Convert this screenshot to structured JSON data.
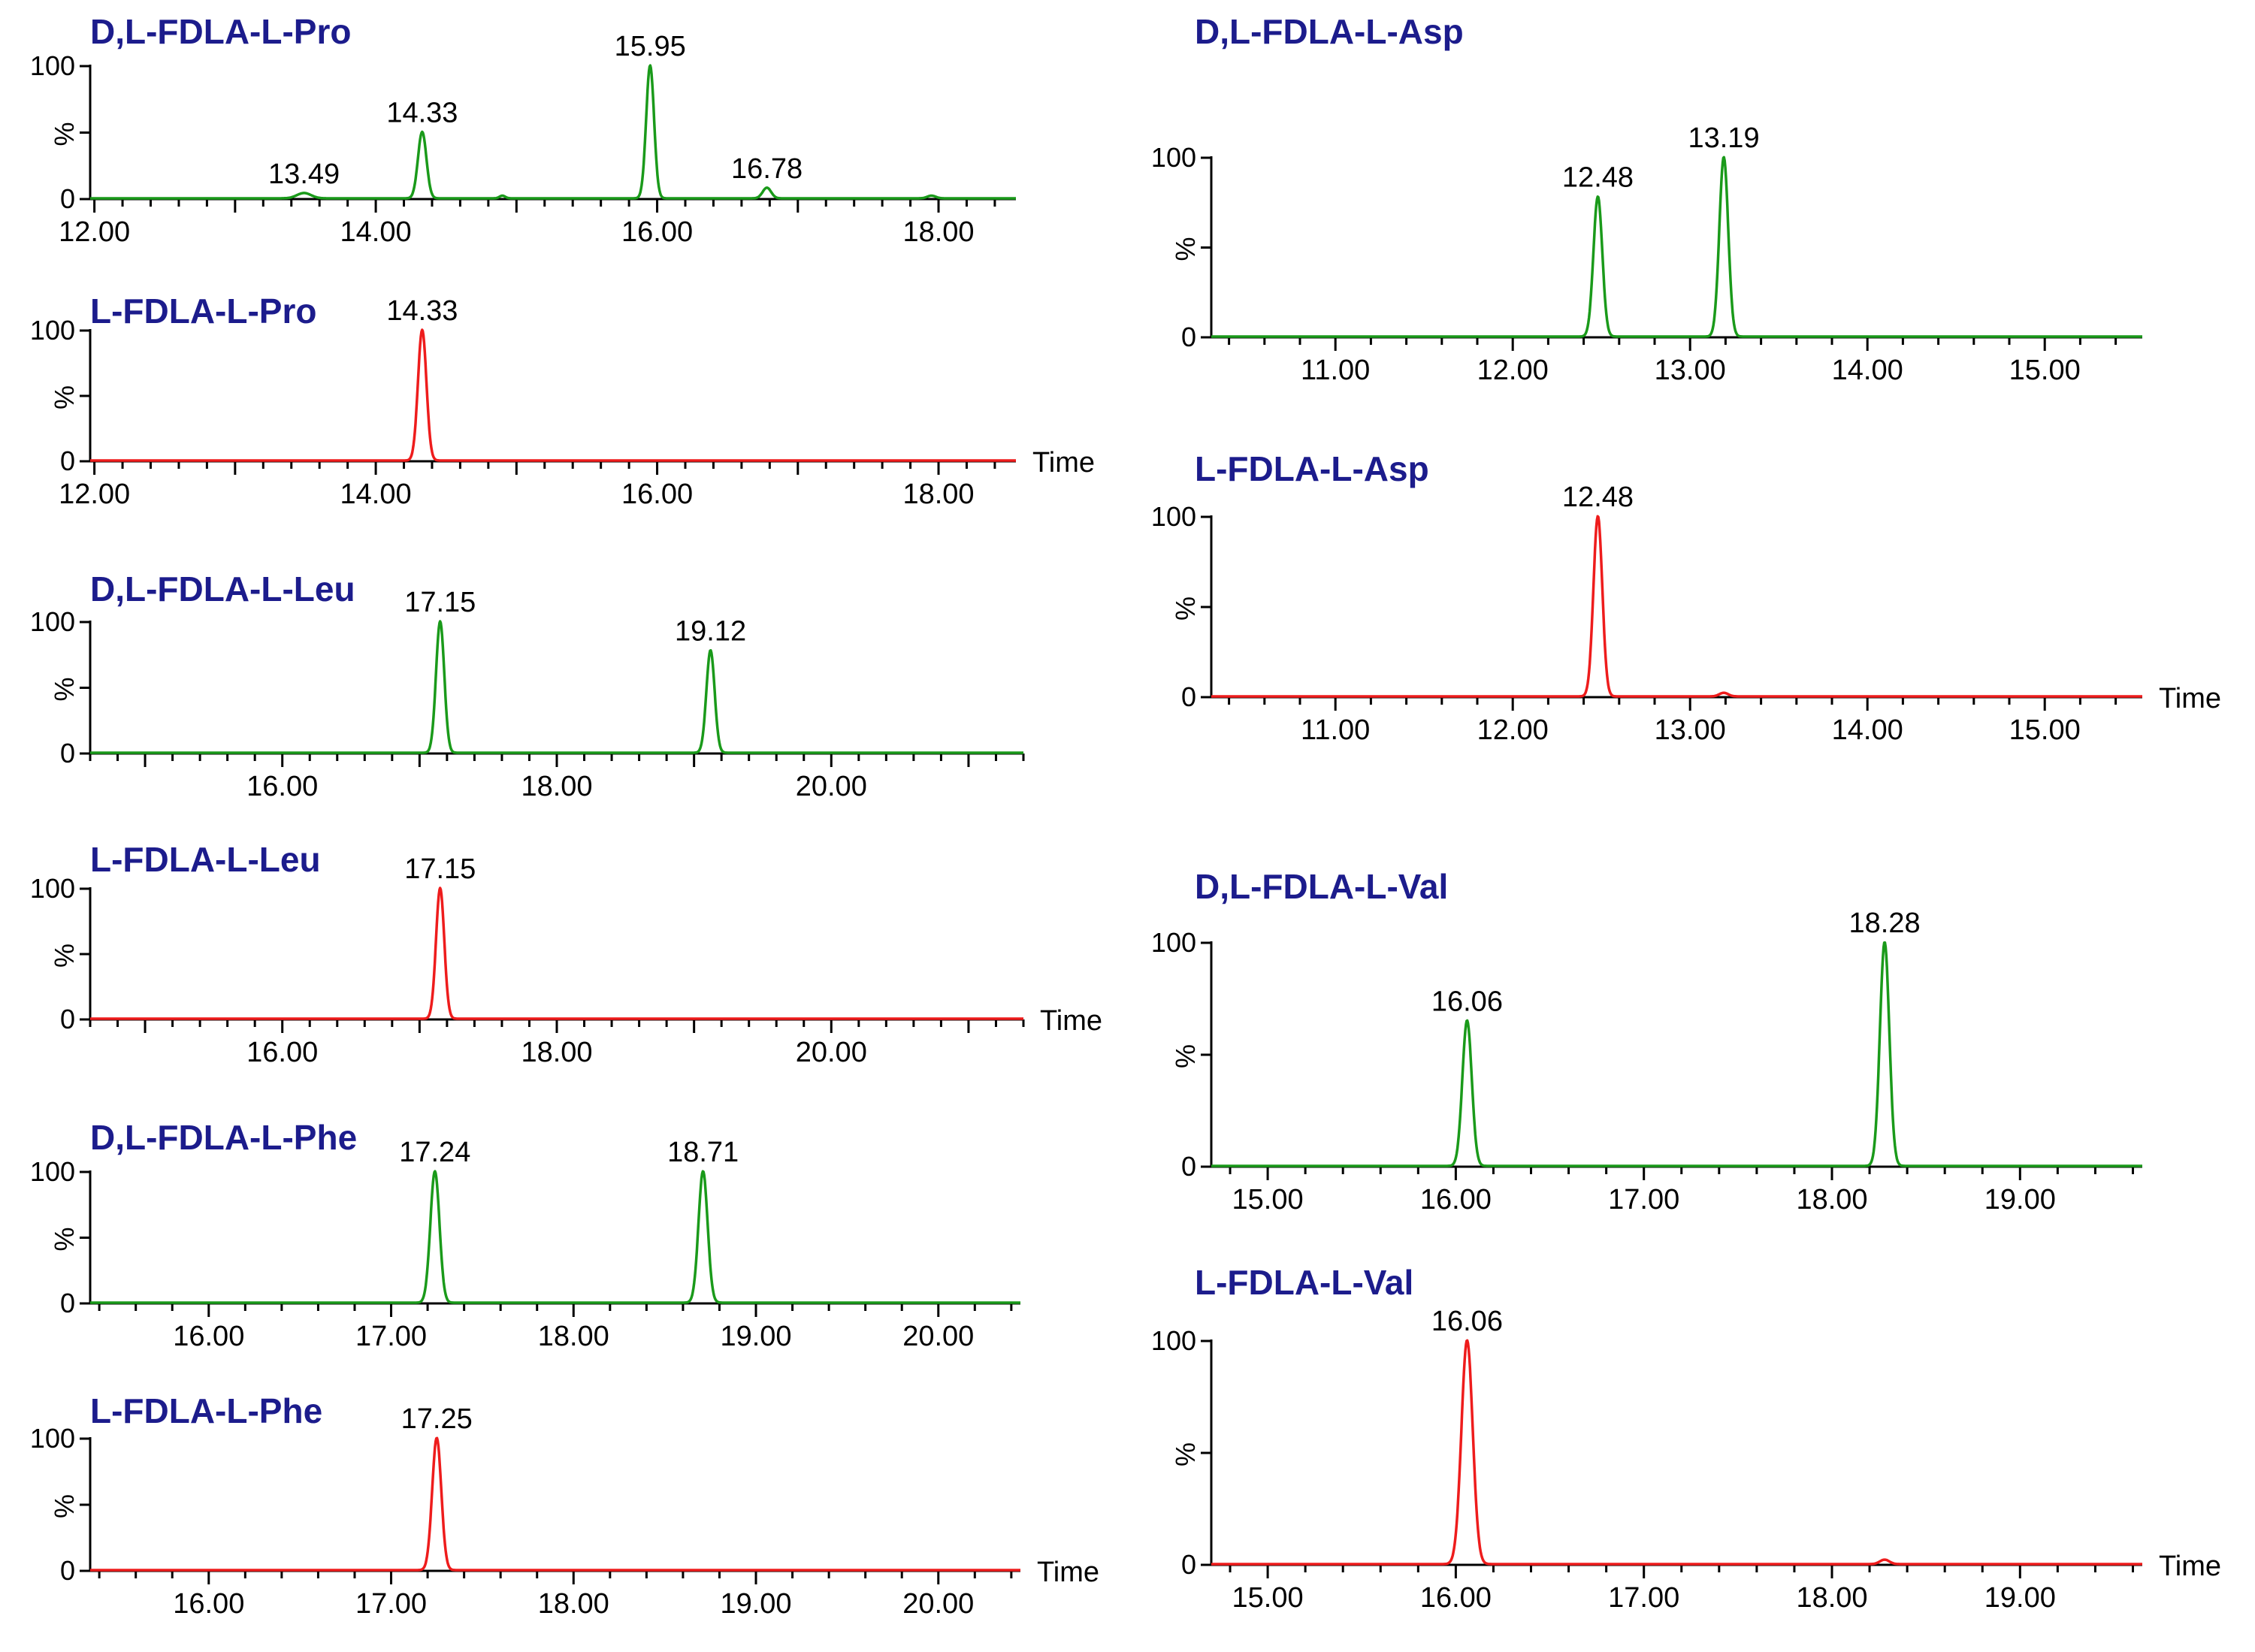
{
  "colors": {
    "green": "#1a9a1a",
    "red": "#ee1c1c",
    "title": "#1c1c8c",
    "axis": "#000000"
  },
  "y_tick_labels": [
    "100",
    "%",
    "0"
  ],
  "time_label": "Time",
  "chart_data": [
    {
      "id": "dl-pro",
      "type": "line",
      "title": "D,L-FDLA-L-Pro",
      "series_color": "green",
      "xlim": [
        11.97,
        18.55
      ],
      "ylim": [
        0,
        100
      ],
      "ylabel": "%",
      "xlabel": "",
      "xticks": [
        "12.00",
        "14.00",
        "16.00",
        "18.00"
      ],
      "peaks": [
        {
          "rt": 13.49,
          "height": 4,
          "label": "13.49",
          "width": 0.05
        },
        {
          "rt": 14.33,
          "height": 50,
          "label": "14.33",
          "width": 0.03
        },
        {
          "rt": 14.9,
          "height": 2,
          "width": 0.02
        },
        {
          "rt": 15.95,
          "height": 100,
          "label": "15.95",
          "width": 0.028
        },
        {
          "rt": 16.78,
          "height": 8,
          "label": "16.78",
          "width": 0.03
        },
        {
          "rt": 17.95,
          "height": 2,
          "width": 0.03
        }
      ]
    },
    {
      "id": "l-pro",
      "type": "line",
      "title": "L-FDLA-L-Pro",
      "series_color": "red",
      "xlim": [
        11.97,
        18.55
      ],
      "ylim": [
        0,
        100
      ],
      "ylabel": "%",
      "xlabel": "Time",
      "xticks": [
        "12.00",
        "14.00",
        "16.00",
        "18.00"
      ],
      "peaks": [
        {
          "rt": 14.33,
          "height": 100,
          "label": "14.33",
          "width": 0.03
        }
      ]
    },
    {
      "id": "dl-leu",
      "type": "line",
      "title": "D,L-FDLA-L-Leu",
      "series_color": "green",
      "xlim": [
        14.6,
        21.4
      ],
      "ylim": [
        0,
        100
      ],
      "ylabel": "%",
      "xlabel": "",
      "xticks": [
        "16.00",
        "18.00",
        "20.00"
      ],
      "peaks": [
        {
          "rt": 17.15,
          "height": 100,
          "label": "17.15",
          "width": 0.03
        },
        {
          "rt": 19.12,
          "height": 78,
          "label": "19.12",
          "width": 0.03
        }
      ]
    },
    {
      "id": "l-leu",
      "type": "line",
      "title": "L-FDLA-L-Leu",
      "series_color": "red",
      "xlim": [
        14.6,
        21.4
      ],
      "ylim": [
        0,
        100
      ],
      "ylabel": "%",
      "xlabel": "Time",
      "xticks": [
        "16.00",
        "18.00",
        "20.00"
      ],
      "peaks": [
        {
          "rt": 17.15,
          "height": 100,
          "label": "17.15",
          "width": 0.03
        }
      ]
    },
    {
      "id": "dl-phe",
      "type": "line",
      "title": "D,L-FDLA-L-Phe",
      "series_color": "green",
      "xlim": [
        15.35,
        20.45
      ],
      "ylim": [
        0,
        100
      ],
      "ylabel": "%",
      "xlabel": "",
      "xticks": [
        "16.00",
        "17.00",
        "18.00",
        "19.00",
        "20.00"
      ],
      "peaks": [
        {
          "rt": 17.24,
          "height": 100,
          "label": "17.24",
          "width": 0.025
        },
        {
          "rt": 18.71,
          "height": 100,
          "label": "18.71",
          "width": 0.025
        }
      ]
    },
    {
      "id": "l-phe",
      "type": "line",
      "title": "L-FDLA-L-Phe",
      "series_color": "red",
      "xlim": [
        15.35,
        20.45
      ],
      "ylim": [
        0,
        100
      ],
      "ylabel": "%",
      "xlabel": "Time",
      "xticks": [
        "16.00",
        "17.00",
        "18.00",
        "19.00",
        "20.00"
      ],
      "peaks": [
        {
          "rt": 17.25,
          "height": 100,
          "label": "17.25",
          "width": 0.025
        }
      ]
    },
    {
      "id": "dl-asp",
      "type": "line",
      "title": "D,L-FDLA-L-Asp",
      "series_color": "green",
      "xlim": [
        10.3,
        15.55
      ],
      "ylim": [
        0,
        100
      ],
      "ylabel": "%",
      "xlabel": "",
      "xticks": [
        "11.00",
        "12.00",
        "13.00",
        "14.00",
        "15.00"
      ],
      "peaks": [
        {
          "rt": 12.48,
          "height": 78,
          "label": "12.48",
          "width": 0.025
        },
        {
          "rt": 13.19,
          "height": 100,
          "label": "13.19",
          "width": 0.025
        }
      ]
    },
    {
      "id": "l-asp",
      "type": "line",
      "title": "L-FDLA-L-Asp",
      "series_color": "red",
      "xlim": [
        10.3,
        15.55
      ],
      "ylim": [
        0,
        100
      ],
      "ylabel": "%",
      "xlabel": "Time",
      "xticks": [
        "11.00",
        "12.00",
        "13.00",
        "14.00",
        "15.00"
      ],
      "peaks": [
        {
          "rt": 12.48,
          "height": 100,
          "label": "12.48",
          "width": 0.025
        },
        {
          "rt": 13.19,
          "height": 2,
          "width": 0.025
        }
      ]
    },
    {
      "id": "dl-val",
      "type": "line",
      "title": "D,L-FDLA-L-Val",
      "series_color": "green",
      "xlim": [
        14.7,
        19.65
      ],
      "ylim": [
        0,
        100
      ],
      "ylabel": "%",
      "xlabel": "",
      "xticks": [
        "15.00",
        "16.00",
        "17.00",
        "18.00",
        "19.00"
      ],
      "peaks": [
        {
          "rt": 16.06,
          "height": 65,
          "label": "16.06",
          "width": 0.025
        },
        {
          "rt": 18.28,
          "height": 100,
          "label": "18.28",
          "width": 0.025
        }
      ]
    },
    {
      "id": "l-val",
      "type": "line",
      "title": "L-FDLA-L-Val",
      "series_color": "red",
      "xlim": [
        14.7,
        19.65
      ],
      "ylim": [
        0,
        100
      ],
      "ylabel": "%",
      "xlabel": "Time",
      "xticks": [
        "15.00",
        "16.00",
        "17.00",
        "18.00",
        "19.00"
      ],
      "peaks": [
        {
          "rt": 16.06,
          "height": 100,
          "label": "16.06",
          "width": 0.03
        },
        {
          "rt": 18.28,
          "height": 2,
          "width": 0.025
        }
      ]
    }
  ]
}
